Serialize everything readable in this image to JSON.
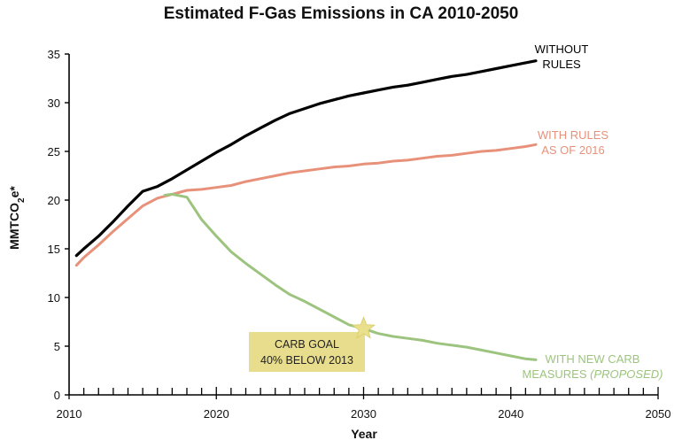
{
  "chart_data": {
    "type": "line",
    "title": "Estimated F-Gas Emissions in CA 2010-2050",
    "xlabel": "Year",
    "ylabel_main": "MMTCO",
    "ylabel_sub": "2",
    "ylabel_suffix": "e*",
    "xlim": [
      2010,
      2050
    ],
    "ylim": [
      0,
      35
    ],
    "x_ticks": [
      2010,
      2020,
      2030,
      2040,
      2050
    ],
    "y_ticks": [
      0,
      5,
      10,
      15,
      20,
      25,
      30,
      35
    ],
    "x_minor_ticks_per_year": true,
    "grid": false,
    "colors": {
      "without_rules": "#000000",
      "with_rules_2016": "#E8917A",
      "new_carb": "#9DC47F",
      "goal_box": "#E8DD8C",
      "goal_star": "#EAE08C"
    },
    "series": [
      {
        "id": "without_rules",
        "label_lines": [
          "WITHOUT",
          "RULES"
        ],
        "x": [
          2010.5,
          2011,
          2012,
          2013,
          2014,
          2015,
          2016,
          2017,
          2018,
          2019,
          2020,
          2021,
          2022,
          2023,
          2024,
          2025,
          2026,
          2027,
          2028,
          2029,
          2030,
          2031,
          2032,
          2033,
          2034,
          2035,
          2036,
          2037,
          2038,
          2039,
          2040,
          2041,
          2041.7
        ],
        "y": [
          14.3,
          15.0,
          16.3,
          17.8,
          19.4,
          20.9,
          21.4,
          22.2,
          23.1,
          24.0,
          24.9,
          25.7,
          26.6,
          27.4,
          28.2,
          28.9,
          29.4,
          29.9,
          30.3,
          30.7,
          31.0,
          31.3,
          31.6,
          31.8,
          32.1,
          32.4,
          32.7,
          32.9,
          33.2,
          33.5,
          33.8,
          34.1,
          34.3
        ]
      },
      {
        "id": "with_rules_2016",
        "label_lines": [
          "WITH RULES",
          "AS OF 2016"
        ],
        "x": [
          2010.5,
          2011,
          2012,
          2013,
          2014,
          2015,
          2016,
          2017,
          2018,
          2019,
          2020,
          2021,
          2022,
          2023,
          2024,
          2025,
          2026,
          2027,
          2028,
          2029,
          2030,
          2031,
          2032,
          2033,
          2034,
          2035,
          2036,
          2037,
          2038,
          2039,
          2040,
          2041,
          2041.7
        ],
        "y": [
          13.3,
          14.1,
          15.4,
          16.8,
          18.1,
          19.4,
          20.2,
          20.6,
          21.0,
          21.1,
          21.3,
          21.5,
          21.9,
          22.2,
          22.5,
          22.8,
          23.0,
          23.2,
          23.4,
          23.5,
          23.7,
          23.8,
          24.0,
          24.1,
          24.3,
          24.5,
          24.6,
          24.8,
          25.0,
          25.1,
          25.3,
          25.5,
          25.7
        ]
      },
      {
        "id": "new_carb",
        "label_line1": "WITH NEW CARB",
        "label_line2_a": "MEASURES ",
        "label_line2_b": "(PROPOSED)",
        "x": [
          2016.5,
          2017,
          2018,
          2019,
          2020,
          2021,
          2022,
          2023,
          2024,
          2025,
          2026,
          2027,
          2028,
          2029,
          2030,
          2031,
          2032,
          2033,
          2034,
          2035,
          2036,
          2037,
          2038,
          2039,
          2040,
          2041,
          2041.7
        ],
        "y": [
          20.5,
          20.6,
          20.3,
          18.0,
          16.3,
          14.7,
          13.5,
          12.4,
          11.3,
          10.3,
          9.6,
          8.8,
          8.0,
          7.2,
          6.8,
          6.3,
          6.0,
          5.8,
          5.6,
          5.3,
          5.1,
          4.9,
          4.6,
          4.3,
          4.0,
          3.7,
          3.6
        ]
      }
    ],
    "annotation": {
      "label_lines": [
        "CARB GOAL",
        "40% BELOW 2013"
      ],
      "marker_x": 2030,
      "marker_y": 6.8
    }
  }
}
